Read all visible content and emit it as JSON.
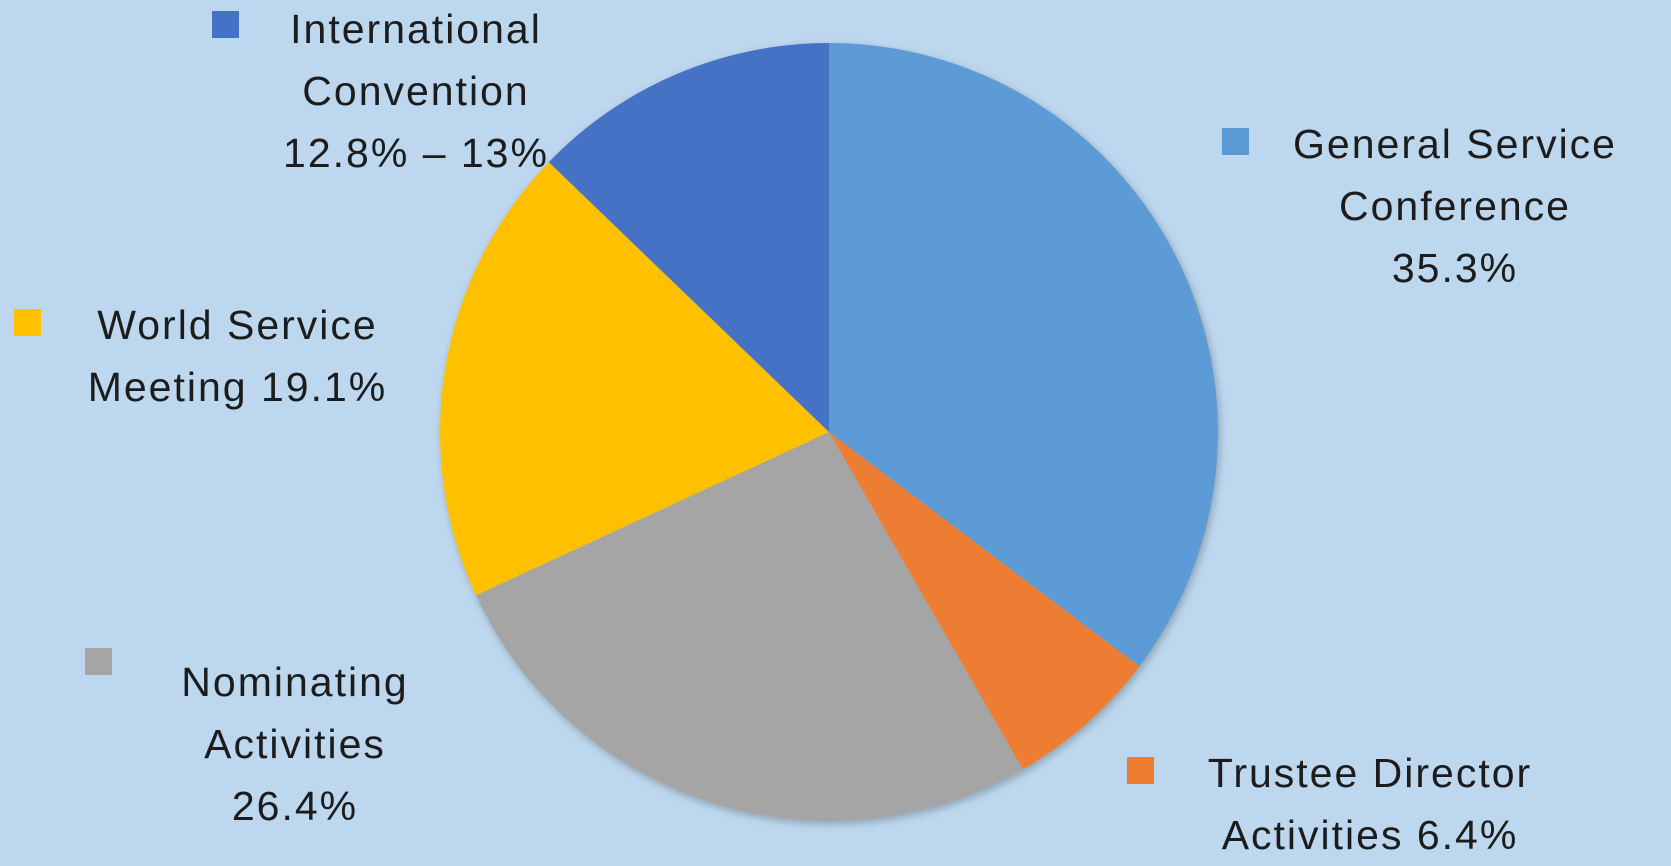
{
  "chart_data": {
    "type": "pie",
    "categories": [
      "General Service Conference",
      "Trustee Director Activities",
      "Nominating Activities",
      "World Service Meeting",
      "International Convention"
    ],
    "values": [
      35.3,
      6.4,
      26.4,
      19.1,
      12.8
    ],
    "value_labels": [
      "35.3%",
      "6.4%",
      "26.4%",
      "19.1%",
      "12.8% – 13%"
    ],
    "colors": [
      "#5b9bd5",
      "#ed7d31",
      "#a5a5a5",
      "#ffc000",
      "#4472c4"
    ]
  }
}
